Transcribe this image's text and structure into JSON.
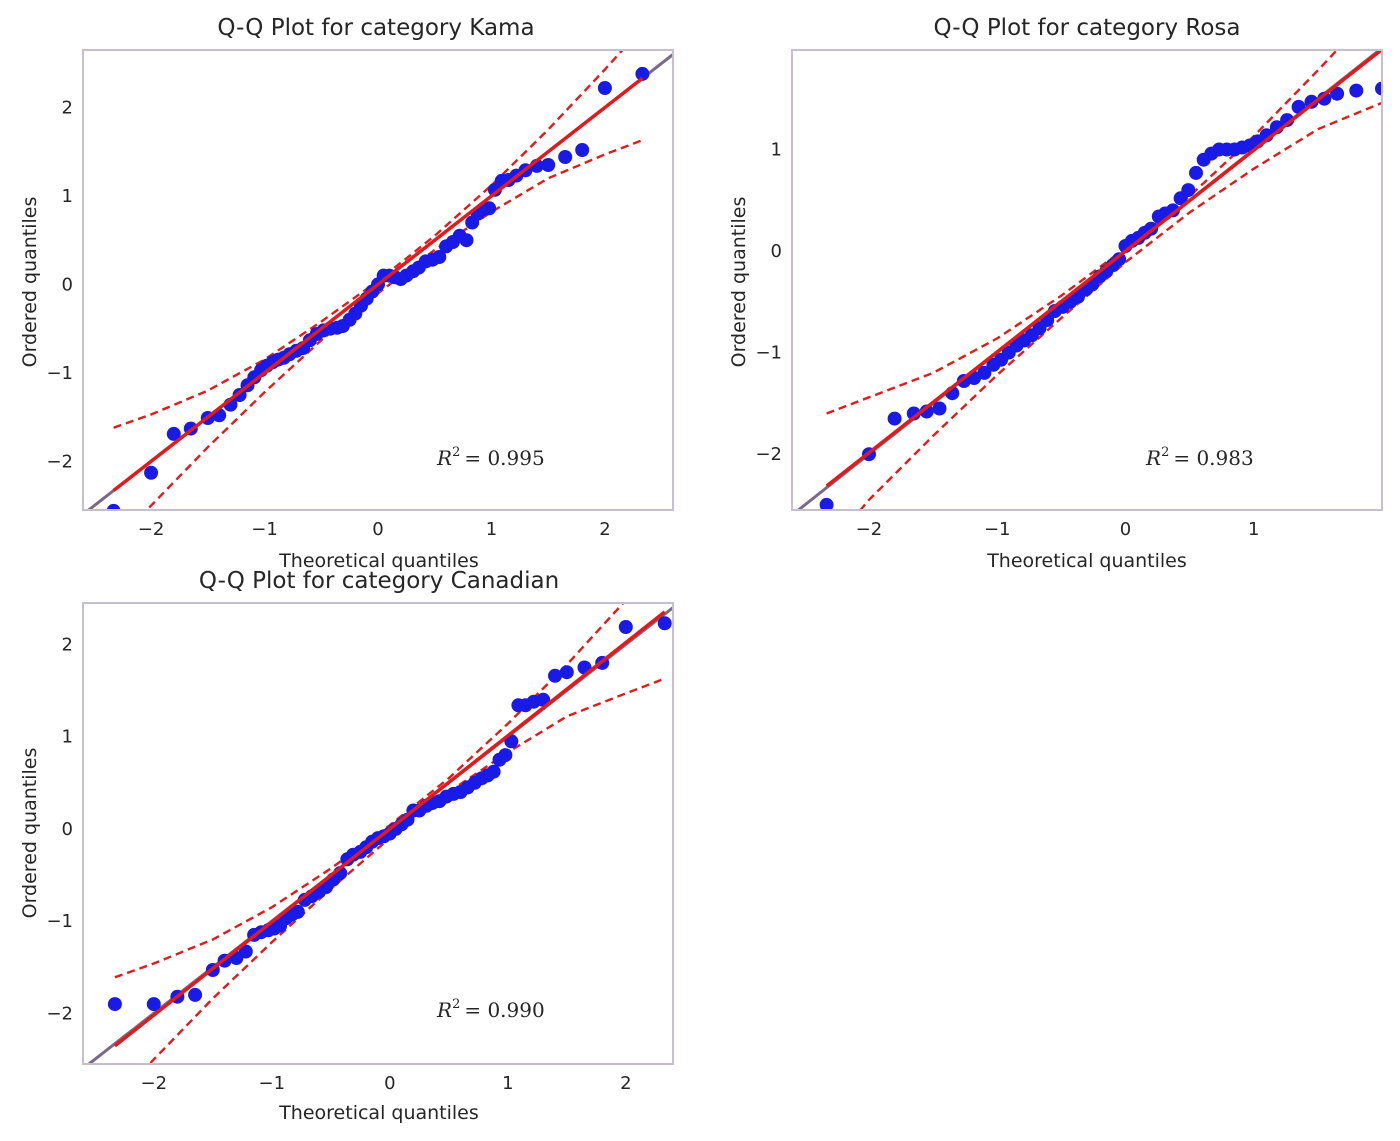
{
  "colors": {
    "point": "#1a1ae6",
    "reference_line": "#7a6a8a",
    "fit_line": "#e31a1c",
    "band": "#e31a1c",
    "frame": "#c7bfcc"
  },
  "chart_data": [
    {
      "type": "scatter",
      "title": "Q-Q Plot for category Kama",
      "xlabel": "Theoretical quantiles",
      "ylabel": "Ordered quantiles",
      "xlim": [
        -2.6,
        2.6
      ],
      "ylim": [
        -2.55,
        2.65
      ],
      "xticks": [
        -2,
        -1,
        0,
        1,
        2
      ],
      "yticks": [
        -2,
        -1,
        0,
        1,
        2
      ],
      "grid": false,
      "r2_label": "R",
      "r2_sup": "2",
      "r2_value": "= 0.995",
      "fit": {
        "slope": 1.0,
        "intercept": 0.0
      },
      "band_upper": {
        "x": [
          -2.33,
          -2.0,
          -1.5,
          -1.0,
          -0.5,
          0.0,
          0.5,
          1.0,
          1.5,
          2.0,
          2.33
        ],
        "y": [
          -1.62,
          -1.47,
          -1.2,
          -0.85,
          -0.42,
          0.04,
          0.55,
          1.12,
          1.75,
          2.43,
          2.9
        ]
      },
      "band_lower": {
        "x": [
          -2.33,
          -2.0,
          -1.5,
          -1.0,
          -0.5,
          0.0,
          0.5,
          1.0,
          1.5,
          2.0,
          2.33
        ],
        "y": [
          -2.95,
          -2.5,
          -1.84,
          -1.22,
          -0.63,
          -0.1,
          0.39,
          0.82,
          1.2,
          1.47,
          1.63
        ]
      },
      "points": {
        "x": [
          -2.33,
          -2.0,
          -1.8,
          -1.65,
          -1.5,
          -1.4,
          -1.3,
          -1.22,
          -1.15,
          -1.09,
          -1.03,
          -0.98,
          -0.93,
          -0.88,
          -0.83,
          -0.78,
          -0.72,
          -0.66,
          -0.6,
          -0.54,
          -0.48,
          -0.42,
          -0.36,
          -0.31,
          -0.25,
          -0.2,
          -0.15,
          -0.1,
          -0.05,
          0.0,
          0.05,
          0.1,
          0.15,
          0.2,
          0.25,
          0.31,
          0.36,
          0.42,
          0.48,
          0.54,
          0.6,
          0.66,
          0.72,
          0.78,
          0.83,
          0.88,
          0.93,
          0.98,
          1.03,
          1.09,
          1.15,
          1.22,
          1.3,
          1.4,
          1.5,
          1.65,
          1.8,
          2.0,
          2.33
        ],
        "y": [
          -2.56,
          -2.13,
          -1.69,
          -1.63,
          -1.51,
          -1.48,
          -1.36,
          -1.25,
          -1.14,
          -1.05,
          -0.97,
          -0.92,
          -0.88,
          -0.85,
          -0.83,
          -0.79,
          -0.75,
          -0.72,
          -0.63,
          -0.56,
          -0.52,
          -0.5,
          -0.49,
          -0.47,
          -0.4,
          -0.33,
          -0.24,
          -0.16,
          -0.08,
          0.0,
          0.1,
          0.1,
          0.08,
          0.06,
          0.1,
          0.15,
          0.19,
          0.26,
          0.28,
          0.31,
          0.43,
          0.48,
          0.55,
          0.5,
          0.7,
          0.8,
          0.85,
          0.86,
          1.07,
          1.17,
          1.18,
          1.23,
          1.29,
          1.34,
          1.35,
          1.44,
          1.52,
          2.22,
          2.38
        ]
      }
    },
    {
      "type": "scatter",
      "title": "Q-Q Plot for category Rosa",
      "xlabel": "Theoretical quantiles",
      "ylabel": "Ordered quantiles",
      "xlim": [
        -2.6,
        2.0
      ],
      "ylim": [
        -2.55,
        1.98
      ],
      "xticks": [
        -2,
        -1,
        0,
        1
      ],
      "yticks": [
        -2,
        -1,
        0,
        1
      ],
      "grid": false,
      "r2_label": "R",
      "r2_sup": "2",
      "r2_value": "= 0.983",
      "fit": {
        "slope": 0.993,
        "intercept": 0.0
      },
      "band_upper": {
        "x": [
          -2.33,
          -2.0,
          -1.5,
          -1.0,
          -0.5,
          0.0,
          0.5,
          1.0,
          1.5,
          2.0
        ],
        "y": [
          -1.6,
          -1.44,
          -1.2,
          -0.86,
          -0.44,
          0.03,
          0.54,
          1.13,
          1.78,
          2.45
        ]
      },
      "band_lower": {
        "x": [
          -2.33,
          -2.0,
          -1.5,
          -1.0,
          -0.5,
          0.0,
          0.5,
          1.0,
          1.5,
          2.0
        ],
        "y": [
          -2.95,
          -2.45,
          -1.82,
          -1.22,
          -0.66,
          -0.11,
          0.38,
          0.81,
          1.2,
          1.46
        ]
      },
      "points": {
        "x": [
          -2.33,
          -2.0,
          -1.8,
          -1.65,
          -1.55,
          -1.45,
          -1.35,
          -1.26,
          -1.18,
          -1.1,
          -1.03,
          -0.97,
          -0.91,
          -0.85,
          -0.79,
          -0.73,
          -0.67,
          -0.61,
          -0.55,
          -0.49,
          -0.43,
          -0.37,
          -0.31,
          -0.26,
          -0.2,
          -0.15,
          -0.1,
          -0.05,
          0.0,
          0.05,
          0.1,
          0.15,
          0.2,
          0.26,
          0.31,
          0.37,
          0.43,
          0.49,
          0.55,
          0.61,
          0.67,
          0.73,
          0.79,
          0.85,
          0.91,
          0.97,
          1.03,
          1.1,
          1.18,
          1.26,
          1.35,
          1.45,
          1.55,
          1.65,
          1.8,
          2.0
        ],
        "y": [
          -2.5,
          -2.0,
          -1.65,
          -1.6,
          -1.58,
          -1.55,
          -1.4,
          -1.28,
          -1.25,
          -1.2,
          -1.12,
          -1.07,
          -1.0,
          -0.93,
          -0.88,
          -0.83,
          -0.76,
          -0.68,
          -0.59,
          -0.55,
          -0.5,
          -0.45,
          -0.38,
          -0.33,
          -0.25,
          -0.2,
          -0.14,
          -0.08,
          0.05,
          0.1,
          0.13,
          0.18,
          0.22,
          0.34,
          0.37,
          0.4,
          0.52,
          0.6,
          0.77,
          0.9,
          0.96,
          1.0,
          1.0,
          1.0,
          1.02,
          1.04,
          1.08,
          1.14,
          1.22,
          1.29,
          1.42,
          1.47,
          1.5,
          1.55,
          1.58,
          1.6
        ]
      }
    },
    {
      "type": "scatter",
      "title": "Q-Q Plot for category Canadian",
      "xlabel": "Theoretical quantiles",
      "ylabel": "Ordered quantiles",
      "xlim": [
        -2.6,
        2.4
      ],
      "ylim": [
        -2.55,
        2.45
      ],
      "xticks": [
        -2,
        -1,
        0,
        1,
        2
      ],
      "yticks": [
        -2,
        -1,
        0,
        1,
        2
      ],
      "grid": false,
      "r2_label": "R",
      "r2_sup": "2",
      "r2_value": "= 0.990",
      "fit": {
        "slope": 1.01,
        "intercept": 0.0
      },
      "band_upper": {
        "x": [
          -2.33,
          -2.0,
          -1.5,
          -1.0,
          -0.5,
          0.0,
          0.5,
          1.0,
          1.5,
          2.0,
          2.33
        ],
        "y": [
          -1.61,
          -1.46,
          -1.2,
          -0.85,
          -0.43,
          0.04,
          0.55,
          1.14,
          1.78,
          2.48,
          2.9
        ]
      },
      "band_lower": {
        "x": [
          -2.33,
          -2.0,
          -1.5,
          -1.0,
          -0.5,
          0.0,
          0.5,
          1.0,
          1.5,
          2.0,
          2.33
        ],
        "y": [
          -2.95,
          -2.5,
          -1.84,
          -1.23,
          -0.65,
          -0.1,
          0.4,
          0.83,
          1.22,
          1.47,
          1.63
        ]
      },
      "points": {
        "x": [
          -2.33,
          -2.0,
          -1.8,
          -1.65,
          -1.5,
          -1.4,
          -1.3,
          -1.22,
          -1.15,
          -1.09,
          -1.03,
          -0.98,
          -0.93,
          -0.88,
          -0.83,
          -0.78,
          -0.72,
          -0.66,
          -0.6,
          -0.54,
          -0.48,
          -0.42,
          -0.36,
          -0.31,
          -0.25,
          -0.2,
          -0.15,
          -0.1,
          -0.05,
          0.0,
          0.05,
          0.1,
          0.15,
          0.2,
          0.25,
          0.31,
          0.36,
          0.42,
          0.48,
          0.54,
          0.6,
          0.66,
          0.72,
          0.78,
          0.83,
          0.88,
          0.93,
          0.98,
          1.03,
          1.09,
          1.15,
          1.22,
          1.3,
          1.4,
          1.5,
          1.65,
          1.8,
          2.0,
          2.33
        ],
        "y": [
          -1.9,
          -1.9,
          -1.82,
          -1.8,
          -1.53,
          -1.43,
          -1.4,
          -1.33,
          -1.15,
          -1.12,
          -1.1,
          -1.08,
          -1.05,
          -0.97,
          -0.93,
          -0.9,
          -0.77,
          -0.73,
          -0.68,
          -0.63,
          -0.55,
          -0.48,
          -0.33,
          -0.28,
          -0.25,
          -0.2,
          -0.14,
          -0.1,
          -0.08,
          -0.05,
          0.0,
          0.05,
          0.1,
          0.2,
          0.2,
          0.25,
          0.28,
          0.3,
          0.35,
          0.38,
          0.4,
          0.45,
          0.5,
          0.55,
          0.58,
          0.62,
          0.75,
          0.8,
          0.95,
          1.34,
          1.34,
          1.38,
          1.4,
          1.66,
          1.7,
          1.75,
          1.8,
          2.19,
          2.23
        ]
      }
    }
  ]
}
